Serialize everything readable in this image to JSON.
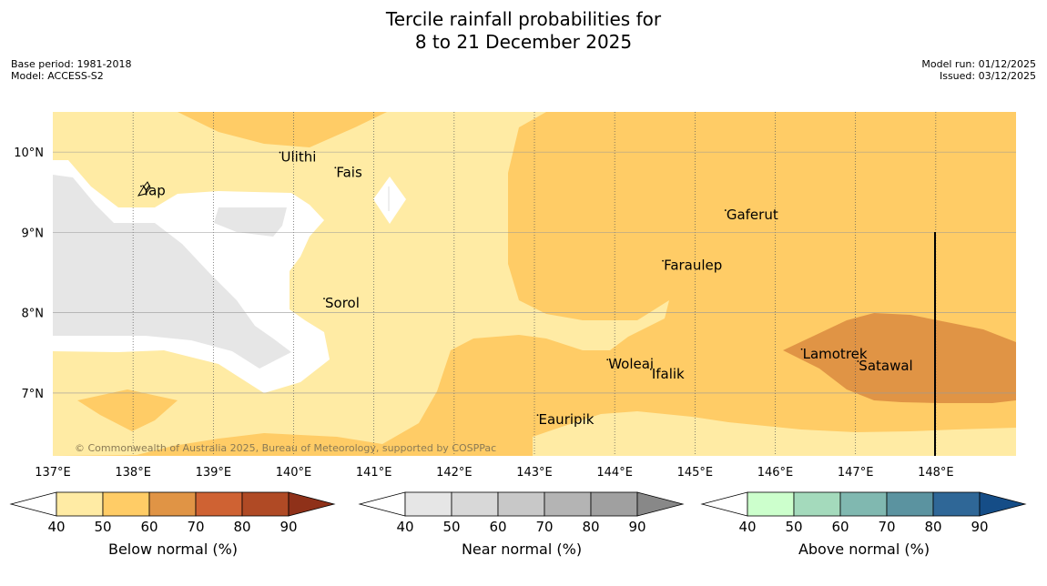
{
  "title": {
    "line1": "Tercile rainfall probabilities for",
    "line2": "8 to 21 December 2025"
  },
  "meta": {
    "base_period": "Base period: 1981-2018",
    "model": "Model: ACCESS-S2",
    "model_run": "Model run: 01/12/2025",
    "issued": "Issued: 03/12/2025"
  },
  "map": {
    "lon_labels": [
      "137°E",
      "138°E",
      "139°E",
      "140°E",
      "141°E",
      "142°E",
      "143°E",
      "144°E",
      "145°E",
      "146°E",
      "147°E",
      "148°E"
    ],
    "lat_labels": [
      "10°N",
      "9°N",
      "8°N",
      "7°N"
    ],
    "places": [
      {
        "name": "Ulithi",
        "lon": 139.83,
        "lat": 9.95
      },
      {
        "name": "Fais",
        "lon": 140.52,
        "lat": 9.76
      },
      {
        "name": "Yap",
        "lon": 138.1,
        "lat": 9.53
      },
      {
        "name": "Gaferut",
        "lon": 145.38,
        "lat": 9.23
      },
      {
        "name": "Faraulep",
        "lon": 144.6,
        "lat": 8.6
      },
      {
        "name": "Sorol",
        "lon": 140.38,
        "lat": 8.13
      },
      {
        "name": "Lamotrek",
        "lon": 146.33,
        "lat": 7.5
      },
      {
        "name": "Woleai",
        "lon": 143.91,
        "lat": 7.37
      },
      {
        "name": "Ifalik",
        "lon": 144.45,
        "lat": 7.25
      },
      {
        "name": "Satawal",
        "lon": 147.03,
        "lat": 7.35
      },
      {
        "name": "Eauripik",
        "lon": 143.04,
        "lat": 6.68
      }
    ],
    "copyright": "© Commonwealth of Australia 2025, Bureau of Meteorology, supported by COSPPac"
  },
  "colorbars": [
    {
      "label": "Below normal (%)",
      "ticks": [
        "40",
        "50",
        "60",
        "70",
        "80",
        "90"
      ],
      "colors": [
        "#ffeba4",
        "#ffcc66",
        "#e09445",
        "#cf6233",
        "#b04a25",
        "#8f3119"
      ]
    },
    {
      "label": "Near normal (%)",
      "ticks": [
        "40",
        "50",
        "60",
        "70",
        "80",
        "90"
      ],
      "colors": [
        "#e6e6e6",
        "#d8d8d8",
        "#c8c8c8",
        "#b4b4b4",
        "#a0a0a0",
        "#888888"
      ]
    },
    {
      "label": "Above normal (%)",
      "ticks": [
        "40",
        "50",
        "60",
        "70",
        "80",
        "90"
      ],
      "colors": [
        "#ccffcc",
        "#a4dabc",
        "#80b8b0",
        "#5b93a0",
        "#2f6797",
        "#154d87"
      ]
    }
  ]
}
